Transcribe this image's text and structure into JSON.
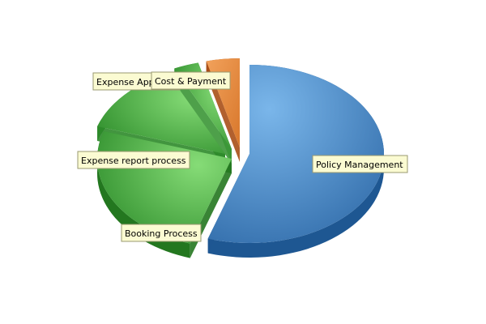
{
  "chart_data": {
    "type": "pie",
    "title": "",
    "categories": [
      "Policy Management",
      "Booking Process",
      "Expense report process",
      "Expense Approval",
      "Cost & Payment"
    ],
    "values": [
      55,
      25,
      13,
      3,
      4
    ],
    "unit": "%",
    "colors": {
      "Policy Management": "#4a86c3",
      "Booking Process": "#3fae3a",
      "Expense report process": "#5cc455",
      "Expense Approval": "#7ecf73",
      "Cost & Payment": "#e58a3e"
    },
    "legend": "none",
    "style": "3d-exploded"
  },
  "labels": {
    "policy": "Policy Management",
    "booking": "Booking Process",
    "expense_report": "Expense report process",
    "expense_approval": "Expense Approval",
    "cost_payment": "Cost & Payment"
  }
}
